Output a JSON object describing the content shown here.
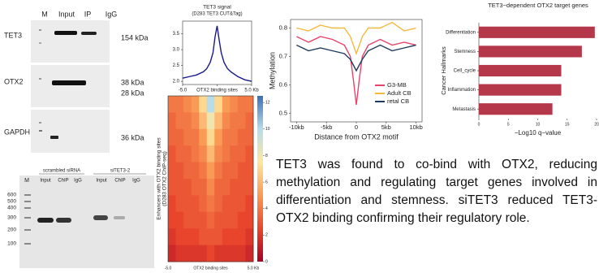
{
  "western_blot": {
    "lanes": [
      "M",
      "Input",
      "IP",
      "IgG"
    ],
    "rows": [
      {
        "label": "TET3",
        "sizes": [
          "154 kDa"
        ]
      },
      {
        "label": "OTX2",
        "sizes": [
          "38 kDa",
          "28 kDa"
        ]
      },
      {
        "label": "GAPDH",
        "sizes": [
          "36 kDa"
        ]
      }
    ]
  },
  "gel": {
    "groups": [
      "scrambled siRNA",
      "siTET3-2"
    ],
    "marker": "M",
    "lanes": [
      "Input",
      "ChIP",
      "IgG",
      "Input",
      "ChIP",
      "IgG"
    ],
    "ladder": [
      "600",
      "500",
      "400",
      "300",
      "200",
      "100"
    ]
  },
  "chart_data": [
    {
      "type": "line",
      "title": "TET3 signal",
      "subtitle": "(D283 TET3 CUT&Tag)",
      "x": [
        -5,
        -4,
        -3,
        -2,
        -1.5,
        -1,
        -0.6,
        -0.3,
        0,
        0.3,
        0.6,
        1,
        1.5,
        2,
        3,
        4,
        5
      ],
      "series": [
        {
          "color": "#1a1a8c",
          "values": [
            2.1,
            2.15,
            2.2,
            2.3,
            2.4,
            2.6,
            2.9,
            3.4,
            3.75,
            3.3,
            2.9,
            2.6,
            2.4,
            2.3,
            2.15,
            2.05,
            2.0
          ]
        }
      ],
      "xlim": [
        -5,
        5
      ],
      "xticks": [
        {
          "value": -5,
          "label": "-5.0"
        },
        {
          "value": 0,
          "label": "OTX2 binding sites"
        },
        {
          "value": 5,
          "label": "5.0 Kb"
        }
      ],
      "ylim": [
        1.9,
        3.9
      ],
      "yticks": [
        {
          "value": 2,
          "label": "2.0"
        },
        2.5,
        {
          "value": 3,
          "label": "3.0"
        },
        3.5
      ]
    },
    {
      "type": "heatmap",
      "y_label": "Enhancers with OTX2 binding sites",
      "y_label2": "(D283 OTX2 ChIP-seq)",
      "xlim": [
        -5,
        5
      ],
      "xticks": [
        {
          "value": -5,
          "label": "-5.0"
        },
        {
          "value": 0,
          "label": "OTX2 binding sites"
        },
        {
          "value": 5,
          "label": "5.0 Kb"
        }
      ],
      "colormap": [
        "#a50026",
        "#e8452c",
        "#f99a55",
        "#fde7a0",
        "#b7dcea",
        "#3d6fb0"
      ],
      "colorbar": {
        "lim": [
          0,
          12.5
        ],
        "ticks": [
          0,
          2,
          4,
          6,
          8,
          10,
          12
        ]
      },
      "values": [
        [
          4,
          4,
          4.5,
          5,
          7,
          10,
          7,
          5,
          4.5,
          4,
          4
        ],
        [
          3.5,
          4,
          4,
          4.5,
          6,
          8,
          6,
          4.5,
          4,
          4,
          3.5
        ],
        [
          3.5,
          3.5,
          4,
          4,
          5,
          7,
          5,
          4,
          4,
          3.5,
          3.5
        ],
        [
          3,
          3.5,
          3.5,
          4,
          4.5,
          6,
          4.5,
          4,
          3.5,
          3.5,
          3
        ],
        [
          3,
          3,
          3.5,
          3.5,
          4,
          5,
          4,
          3.5,
          3.5,
          3,
          3
        ],
        [
          3,
          3,
          3,
          3.5,
          3.5,
          4.5,
          3.5,
          3.5,
          3,
          3,
          3
        ],
        [
          2.5,
          3,
          3,
          3,
          3.5,
          4,
          3.5,
          3,
          3,
          3,
          2.5
        ],
        [
          2.5,
          2.5,
          3,
          3,
          3,
          3.5,
          3,
          3,
          3,
          2.5,
          2.5
        ],
        [
          2,
          2.5,
          2.5,
          2.5,
          3,
          3,
          3,
          2.5,
          2.5,
          2.5,
          2
        ],
        [
          1.5,
          2,
          2,
          2,
          2,
          2.5,
          2,
          2,
          2,
          2,
          1.5
        ]
      ]
    },
    {
      "type": "line",
      "x_label": "Distance from OTX2 motif",
      "y_label": "Methylation",
      "legend": "lower right",
      "x": [
        -10,
        -8,
        -6,
        -4,
        -2,
        -1,
        -0.5,
        0,
        0.5,
        1,
        2,
        4,
        6,
        8,
        10
      ],
      "series": [
        {
          "name": "G3-MB",
          "color": "#e8436b",
          "values": [
            0.77,
            0.75,
            0.77,
            0.76,
            0.74,
            0.7,
            0.62,
            0.53,
            0.62,
            0.7,
            0.74,
            0.76,
            0.74,
            0.75,
            0.74
          ]
        },
        {
          "name": "Adult CB",
          "color": "#f5b841",
          "values": [
            0.8,
            0.79,
            0.81,
            0.8,
            0.8,
            0.77,
            0.74,
            0.71,
            0.74,
            0.77,
            0.8,
            0.8,
            0.82,
            0.79,
            0.8
          ]
        },
        {
          "name": "retal CB",
          "color": "#1f3b5e",
          "values": [
            0.74,
            0.72,
            0.73,
            0.72,
            0.71,
            0.69,
            0.67,
            0.65,
            0.67,
            0.69,
            0.72,
            0.74,
            0.72,
            0.73,
            0.74
          ]
        }
      ],
      "xlim": [
        -11,
        11
      ],
      "xticks": [
        {
          "value": -10,
          "label": "-10kb"
        },
        {
          "value": -5,
          "label": "-5kb"
        },
        0,
        {
          "value": 5,
          "label": "5kb"
        },
        {
          "value": 10,
          "label": "10kb"
        }
      ],
      "ylim": [
        0.47,
        0.83
      ],
      "yticks": [
        0.5,
        0.6,
        0.7,
        0.8
      ]
    },
    {
      "type": "barh",
      "title": "TET3−dependent OTX2 target genes",
      "x_label": "−Log10 q−value",
      "y_label": "Cancer Hallmarks",
      "categories": [
        "Differentiation",
        "Stemness",
        "Cell_cycle",
        "Inflammation",
        "Metastasis"
      ],
      "values": [
        19.7,
        17.5,
        14,
        14,
        12.5
      ],
      "color": "#b5384a",
      "xlim": [
        0,
        20
      ],
      "xticks": [
        0,
        5,
        10,
        15,
        20
      ]
    }
  ],
  "summary": "TET3 was found to co-bind with OTX2, reducing methylation and regulating target genes involved in differentiation and stemness. siTET3 reduced TET3-OTX2 binding confirming their regulatory role."
}
